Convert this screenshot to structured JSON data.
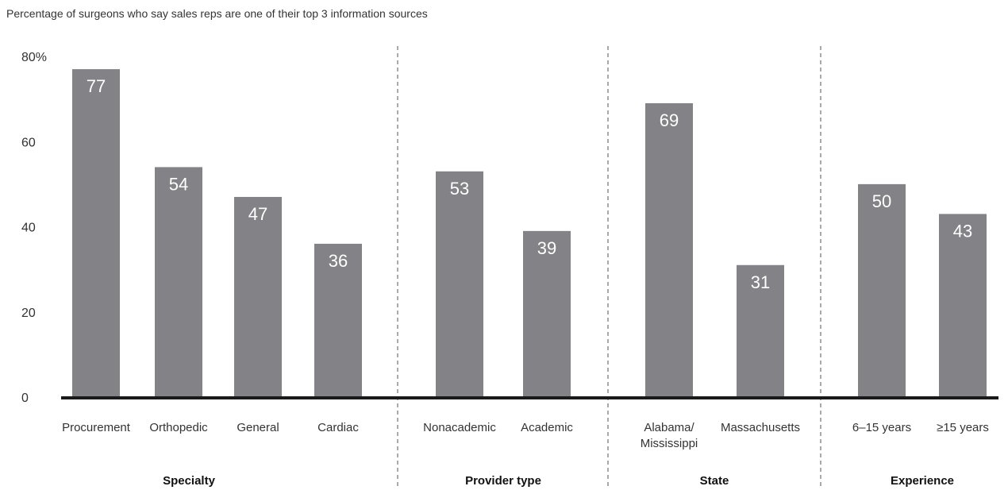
{
  "chart_data": {
    "type": "bar",
    "subtitle": "Percentage of surgeons who say sales reps are one of their top 3 information sources",
    "ylim": [
      0,
      80
    ],
    "yticks": [
      {
        "value": 0,
        "label": "0"
      },
      {
        "value": 20,
        "label": "20"
      },
      {
        "value": 40,
        "label": "40"
      },
      {
        "value": 60,
        "label": "60"
      },
      {
        "value": 80,
        "label": "80%"
      }
    ],
    "grid": false,
    "bar_color": "#838387",
    "baseline_color": "#1a1a1a",
    "groups": [
      {
        "name": "Specialty",
        "categories": [
          "Procurement",
          "Orthopedic",
          "General",
          "Cardiac"
        ],
        "values": [
          77,
          54,
          47,
          36
        ]
      },
      {
        "name": "Provider type",
        "categories": [
          "Nonacademic",
          "Academic"
        ],
        "values": [
          53,
          39
        ]
      },
      {
        "name": "State",
        "categories": [
          "Alabama/\nMississippi",
          "Massachusetts"
        ],
        "values": [
          69,
          31
        ]
      },
      {
        "name": "Experience",
        "categories": [
          "6–15 years",
          "≥15 years"
        ],
        "values": [
          50,
          43
        ]
      }
    ]
  }
}
